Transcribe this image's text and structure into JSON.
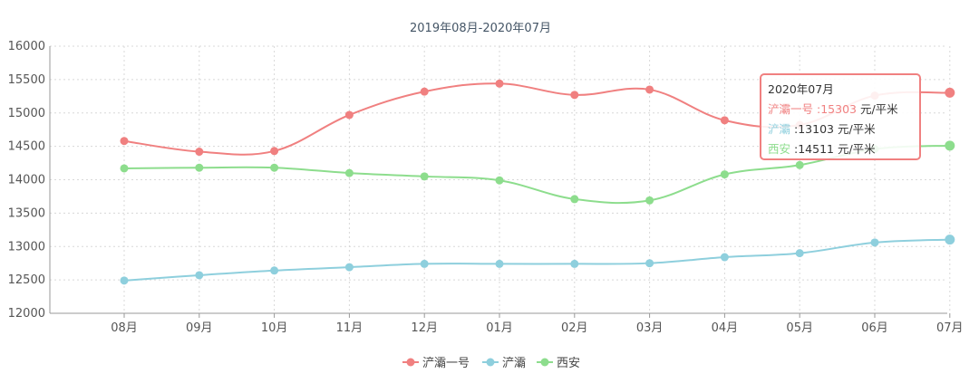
{
  "chart_data": {
    "type": "line",
    "title": "2019年08月-2020年07月",
    "categories": [
      "08月",
      "09月",
      "10月",
      "11月",
      "12月",
      "01月",
      "02月",
      "03月",
      "04月",
      "05月",
      "06月",
      "07月"
    ],
    "ylim": [
      12000,
      16000
    ],
    "yticks": [
      12000,
      12500,
      13000,
      13500,
      14000,
      14500,
      15000,
      15500,
      16000
    ],
    "grid": true,
    "legend_position": "bottom-center",
    "series": [
      {
        "name": "浐灞一号",
        "color": "#f08080",
        "values": [
          14580,
          14420,
          14430,
          14970,
          15320,
          15440,
          15270,
          15350,
          14890,
          14820,
          15260,
          15303
        ]
      },
      {
        "name": "浐灞",
        "color": "#8ecfdd",
        "values": [
          12490,
          12570,
          12640,
          12690,
          12740,
          12740,
          12740,
          12750,
          12840,
          12900,
          13060,
          13103
        ]
      },
      {
        "name": "西安",
        "color": "#8ddd8d",
        "values": [
          14170,
          14180,
          14180,
          14100,
          14050,
          13990,
          13710,
          13690,
          14080,
          14220,
          14460,
          14511
        ]
      }
    ],
    "tooltip": {
      "title": "2020年07月",
      "rows": [
        {
          "series": "浐灞一号",
          "value": ":15303",
          "unit": "元/平米"
        },
        {
          "series": "浐灞",
          "value": ":13103",
          "unit": "元/平米"
        },
        {
          "series": "西安",
          "value": ":14511",
          "unit": "元/平米"
        }
      ]
    }
  }
}
